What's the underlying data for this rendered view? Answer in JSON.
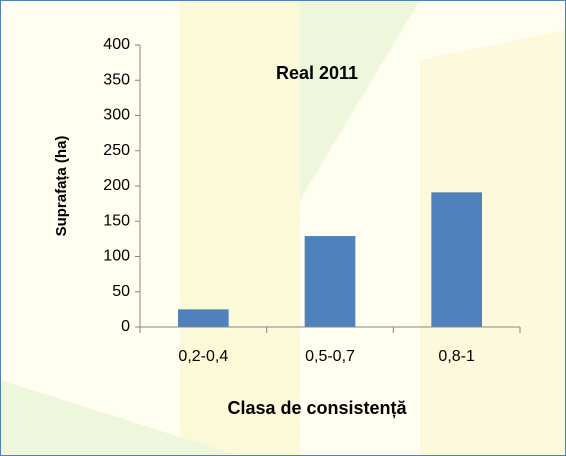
{
  "chart_data": {
    "type": "bar",
    "title": "Real 2011",
    "x_label": "Clasa de consistență",
    "y_label": "Suprafața (ha)",
    "categories": [
      "0,2-0,4",
      "0,5-0,7",
      "0,8-1"
    ],
    "values": [
      25,
      129,
      191
    ],
    "color": "#4f81bd",
    "ylim": [
      0,
      400
    ],
    "yticks": [
      0,
      50,
      100,
      150,
      200,
      250,
      300,
      350,
      400
    ],
    "grid": false
  }
}
